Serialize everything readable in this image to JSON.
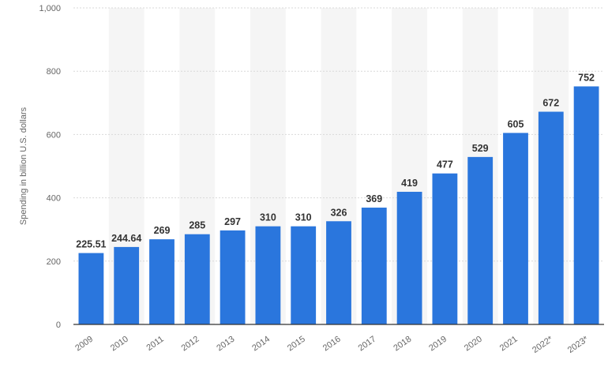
{
  "chart_data": {
    "type": "bar",
    "categories": [
      "2009",
      "2010",
      "2011",
      "2012",
      "2013",
      "2014",
      "2015",
      "2016",
      "2017",
      "2018",
      "2019",
      "2020",
      "2021",
      "2022*",
      "2023*"
    ],
    "values": [
      225.51,
      244.64,
      269,
      285,
      297,
      310,
      310,
      326,
      369,
      419,
      477,
      529,
      605,
      672,
      752
    ],
    "value_labels": [
      "225.51",
      "244.64",
      "269",
      "285",
      "297",
      "310",
      "310",
      "326",
      "369",
      "419",
      "477",
      "529",
      "605",
      "672",
      "752"
    ],
    "ylabel": "Spending in billion U.S. dollars",
    "ylim": [
      0,
      1000
    ],
    "yticks": [
      0,
      200,
      400,
      600,
      800,
      1000
    ],
    "ytick_labels": [
      "0",
      "200",
      "400",
      "600",
      "800",
      "1,000"
    ],
    "grid": true,
    "alternating_column_shading": true,
    "bar_color": "#2a76dd",
    "shade_color": "#f5f5f5"
  }
}
